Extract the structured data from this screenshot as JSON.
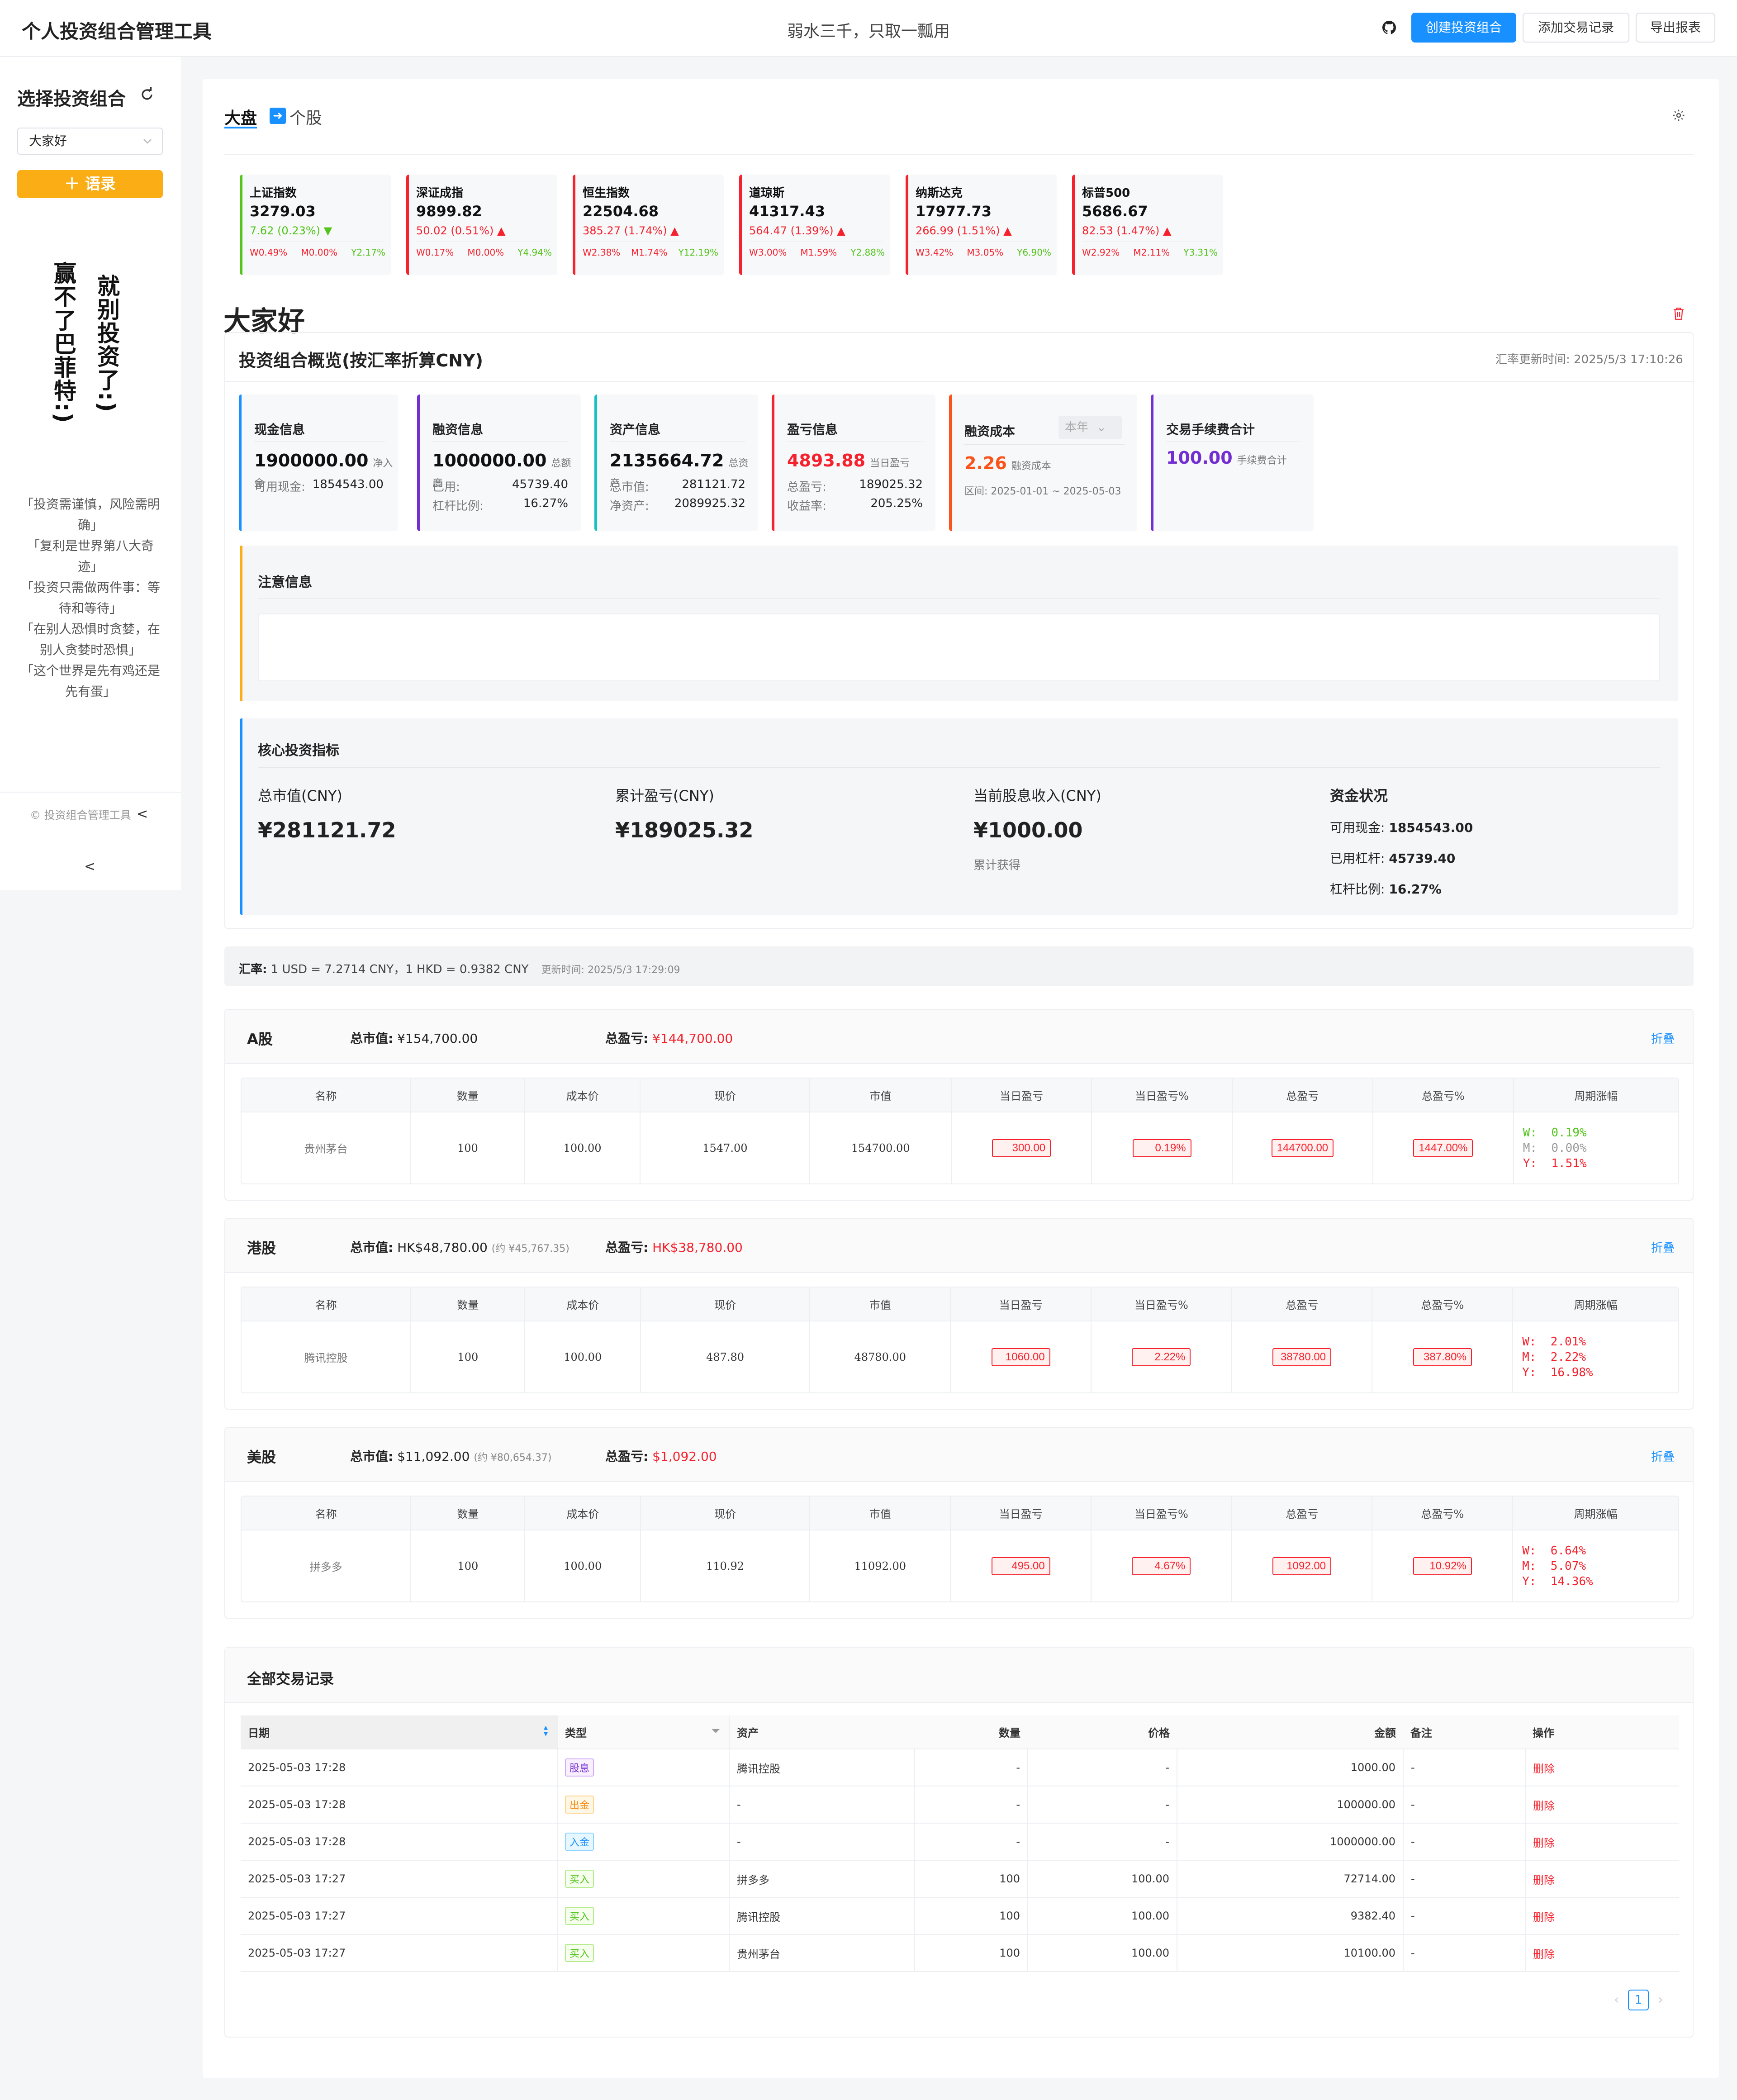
{
  "header": {
    "title": "个人投资组合管理工具",
    "slogan": "弱水三千，只取一瓢用",
    "btn_create": "创建投资组合",
    "btn_add": "添加交易记录",
    "btn_export": "导出报表"
  },
  "sidebar": {
    "title": "选择投资组合",
    "selected": "大家好",
    "quote_btn": "＋ 语录",
    "vertical_1": "就别投资了:)",
    "vertical_2": "赢不了巴菲特:)",
    "quotes": [
      "「投资需谨慎，风险需明确」",
      "「复利是世界第八大奇迹」",
      "「投资只需做两件事：等待和等待」",
      "「在别人恐惧时贪婪，在别人贪婪时恐惧」",
      "「这个世界是先有鸡还是先有蛋」"
    ],
    "copyright": "© 投资组合管理工具",
    "copy_arrow": "<",
    "collapse": "<"
  },
  "tabs": {
    "market": "大盘",
    "stock": "个股"
  },
  "indices": [
    {
      "name": "上证指数",
      "value": "3279.03",
      "change": "7.62 (0.23%)",
      "dir": "down",
      "w": "W0.49%",
      "m": "M0.00%",
      "y": "Y2.17%"
    },
    {
      "name": "深证成指",
      "value": "9899.82",
      "change": "50.02 (0.51%)",
      "dir": "up",
      "w": "W0.17%",
      "m": "M0.00%",
      "y": "Y4.94%"
    },
    {
      "name": "恒生指数",
      "value": "22504.68",
      "change": "385.27 (1.74%)",
      "dir": "up",
      "w": "W2.38%",
      "m": "M1.74%",
      "y": "Y12.19%"
    },
    {
      "name": "道琼斯",
      "value": "41317.43",
      "change": "564.47 (1.39%)",
      "dir": "up",
      "w": "W3.00%",
      "m": "M1.59%",
      "y": "Y2.88%"
    },
    {
      "name": "纳斯达克",
      "value": "17977.73",
      "change": "266.99 (1.51%)",
      "dir": "up",
      "w": "W3.42%",
      "m": "M3.05%",
      "y": "Y6.90%"
    },
    {
      "name": "标普500",
      "value": "5686.67",
      "change": "82.53 (1.47%)",
      "dir": "up",
      "w": "W2.92%",
      "m": "M2.11%",
      "y": "Y3.31%"
    }
  ],
  "portfolio": {
    "name": "大家好",
    "overview_title": "投资组合概览(按汇率折算CNY)",
    "rate_time": "汇率更新时间: 2025/5/3 17:10:26",
    "cash": {
      "title": "现金信息",
      "value": "1900000.00",
      "unit": "净入金",
      "avail_label": "可用现金:",
      "avail": "1854543.00"
    },
    "financing": {
      "title": "融资信息",
      "value": "1000000.00",
      "unit": "总额度",
      "used_label": "已用:",
      "used": "45739.40",
      "lev_label": "杠杆比例:",
      "lev": "16.27%"
    },
    "assets": {
      "title": "资产信息",
      "value": "2135664.72",
      "unit": "总资产",
      "mv_label": "总市值:",
      "mv": "281121.72",
      "net_label": "净资产:",
      "net": "2089925.32"
    },
    "pl": {
      "title": "盈亏信息",
      "value": "4893.88",
      "unit": "当日盈亏",
      "total_label": "总盈亏:",
      "total": "189025.32",
      "rate_label": "收益率:",
      "rate": "205.25%"
    },
    "cost": {
      "title": "融资成本",
      "period": "本年",
      "value": "2.26",
      "unit": "融资成本",
      "range": "区间: 2025-01-01 ~ 2025-05-03"
    },
    "fee": {
      "title": "交易手续费合计",
      "value": "100.00",
      "unit": "手续费合计"
    },
    "notice_title": "注意信息",
    "core_title": "核心投资指标",
    "core": {
      "mv_label": "总市值(CNY)",
      "mv": "¥281121.72",
      "pl_label": "累计盈亏(CNY)",
      "pl": "¥189025.32",
      "div_label": "当前股息收入(CNY)",
      "div": "¥1000.00",
      "div_note": "累计获得",
      "fund_label": "资金状况",
      "fund_cash_label": "可用现金:",
      "fund_cash": "1854543.00",
      "fund_lev_label": "已用杠杆:",
      "fund_lev": "45739.40",
      "fund_ratio_label": "杠杆比例:",
      "fund_ratio": "16.27%"
    }
  },
  "rate_bar": {
    "label": "汇率:",
    "text": "1 USD = 7.2714 CNY，1 HKD = 0.9382 CNY",
    "time": "更新时间: 2025/5/3 17:29:09"
  },
  "table_headers": [
    "名称",
    "数量",
    "成本价",
    "现价",
    "市值",
    "当日盈亏",
    "当日盈亏%",
    "总盈亏",
    "总盈亏%",
    "周期涨幅"
  ],
  "markets": [
    {
      "name": "A股",
      "total_label": "总市值:",
      "total": "¥154,700.00",
      "total_note": "",
      "pl_label": "总盈亏:",
      "pl": "¥144,700.00",
      "fold": "折叠",
      "row": {
        "name": "贵州茅台",
        "qty": "100",
        "cost": "100.00",
        "price": "1547.00",
        "mv": "154700.00",
        "dpl": "300.00",
        "dplp": "0.19%",
        "tpl": "144700.00",
        "tplp": "1447.00%",
        "w": "W:  0.19%",
        "m": "M:  0.00%",
        "y": "Y:  1.51%"
      }
    },
    {
      "name": "港股",
      "total_label": "总市值:",
      "total": "HK$48,780.00",
      "total_note": "(约 ¥45,767.35)",
      "pl_label": "总盈亏:",
      "pl": "HK$38,780.00",
      "fold": "折叠",
      "row": {
        "name": "腾讯控股",
        "qty": "100",
        "cost": "100.00",
        "price": "487.80",
        "mv": "48780.00",
        "dpl": "1060.00",
        "dplp": "2.22%",
        "tpl": "38780.00",
        "tplp": "387.80%",
        "w": "W:  2.01%",
        "m": "M:  2.22%",
        "y": "Y:  16.98%"
      }
    },
    {
      "name": "美股",
      "total_label": "总市值:",
      "total": "$11,092.00",
      "total_note": "(约 ¥80,654.37)",
      "pl_label": "总盈亏:",
      "pl": "$1,092.00",
      "fold": "折叠",
      "row": {
        "name": "拼多多",
        "qty": "100",
        "cost": "100.00",
        "price": "110.92",
        "mv": "11092.00",
        "dpl": "495.00",
        "dplp": "4.67%",
        "tpl": "1092.00",
        "tplp": "10.92%",
        "w": "W:  6.64%",
        "m": "M:  5.07%",
        "y": "Y:  14.36%"
      }
    }
  ],
  "transactions": {
    "title": "全部交易记录",
    "headers": [
      "日期",
      "类型",
      "资产",
      "数量",
      "价格",
      "金额",
      "备注",
      "操作"
    ],
    "rows": [
      {
        "date": "2025-05-03 17:28",
        "type": "股息",
        "tcls": "t-purple",
        "asset": "腾讯控股",
        "qty": "-",
        "price": "-",
        "amount": "1000.00",
        "note": "-",
        "op": "删除"
      },
      {
        "date": "2025-05-03 17:28",
        "type": "出金",
        "tcls": "t-orange",
        "asset": "-",
        "qty": "-",
        "price": "-",
        "amount": "100000.00",
        "note": "-",
        "op": "删除"
      },
      {
        "date": "2025-05-03 17:28",
        "type": "入金",
        "tcls": "t-blue",
        "asset": "-",
        "qty": "-",
        "price": "-",
        "amount": "1000000.00",
        "note": "-",
        "op": "删除"
      },
      {
        "date": "2025-05-03 17:27",
        "type": "买入",
        "tcls": "t-green",
        "asset": "拼多多",
        "qty": "100",
        "price": "100.00",
        "amount": "72714.00",
        "note": "-",
        "op": "删除"
      },
      {
        "date": "2025-05-03 17:27",
        "type": "买入",
        "tcls": "t-green",
        "asset": "腾讯控股",
        "qty": "100",
        "price": "100.00",
        "amount": "9382.40",
        "note": "-",
        "op": "删除"
      },
      {
        "date": "2025-05-03 17:27",
        "type": "买入",
        "tcls": "t-green",
        "asset": "贵州茅台",
        "qty": "100",
        "price": "100.00",
        "amount": "10100.00",
        "note": "-",
        "op": "删除"
      }
    ],
    "page": "1"
  }
}
